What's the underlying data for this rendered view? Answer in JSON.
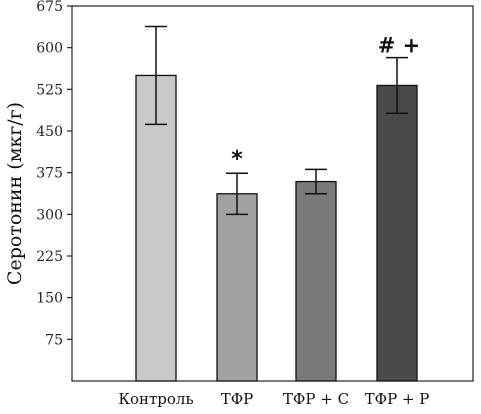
{
  "chart_data": {
    "type": "bar",
    "title": "",
    "xlabel": "",
    "ylabel": "Серотонин (мкг/г)",
    "ylim": [
      0,
      675
    ],
    "yticks": [
      75,
      150,
      225,
      300,
      375,
      450,
      525,
      600,
      675
    ],
    "grid": false,
    "categories": [
      "Контроль",
      "ТФР",
      "ТФР + С",
      "ТФР + Р"
    ],
    "values": [
      550,
      337,
      359,
      532
    ],
    "errors": [
      88,
      37,
      22,
      50
    ],
    "colors": [
      "#c8c8c8",
      "#a2a2a2",
      "#7a7a7a",
      "#4a4a4a"
    ],
    "annotations": [
      "",
      "*",
      "",
      "# +"
    ]
  }
}
